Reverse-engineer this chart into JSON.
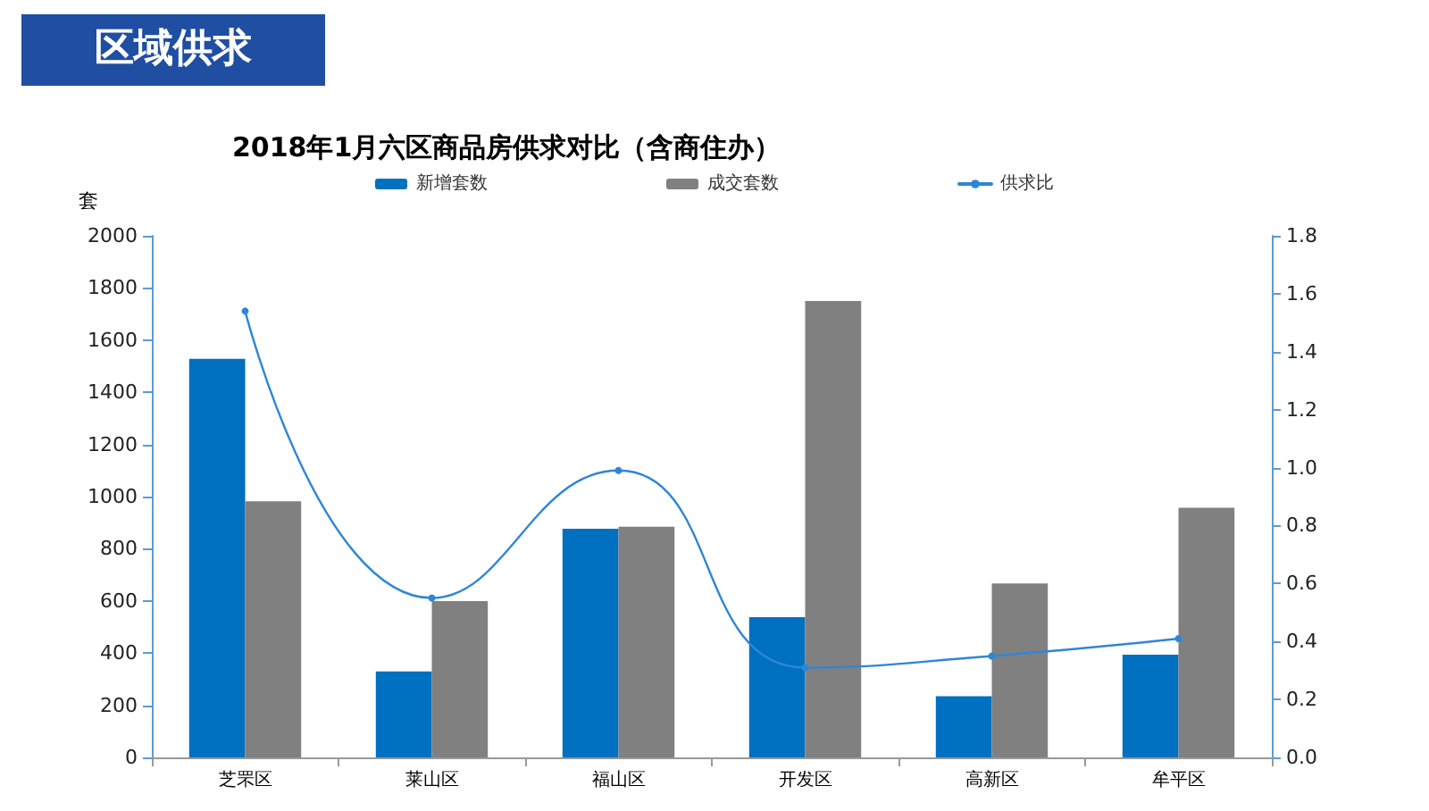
{
  "chart_data": {
    "type": "bar",
    "title": "2018年1月六区商品房供求对比（含商住办）",
    "ylabel": "套",
    "annotations": [
      "区域供求"
    ],
    "categories": [
      "芝罘区",
      "莱山区",
      "福山区",
      "开发区",
      "高新区",
      "牟平区"
    ],
    "series": [
      {
        "name": "新增套数",
        "color": "#0070c0",
        "values": [
          1528,
          330,
          877,
          538,
          235,
          394
        ]
      },
      {
        "name": "成交套数",
        "color": "#808080",
        "values": [
          982,
          599,
          884,
          1750,
          667,
          957
        ]
      },
      {
        "name": "供求比",
        "type": "line",
        "axis": "y2",
        "color": "#2e86d6",
        "values": [
          1.54,
          0.55,
          0.99,
          0.31,
          0.35,
          0.41
        ]
      }
    ],
    "ylim": [
      0,
      2000
    ],
    "yticks": [
      0,
      200,
      400,
      600,
      800,
      1000,
      1200,
      1400,
      1600,
      1800,
      2000
    ],
    "y2lim": [
      0,
      1.8
    ],
    "y2ticks": [
      {
        "value": 0,
        "label": "0.0"
      },
      0.2,
      0.4,
      0.6,
      0.8,
      {
        "value": 1,
        "label": "1.0"
      },
      1.2,
      1.4,
      1.6,
      1.8
    ],
    "grid": false,
    "legend": "top",
    "marker": "circle",
    "line_style": "solid"
  }
}
